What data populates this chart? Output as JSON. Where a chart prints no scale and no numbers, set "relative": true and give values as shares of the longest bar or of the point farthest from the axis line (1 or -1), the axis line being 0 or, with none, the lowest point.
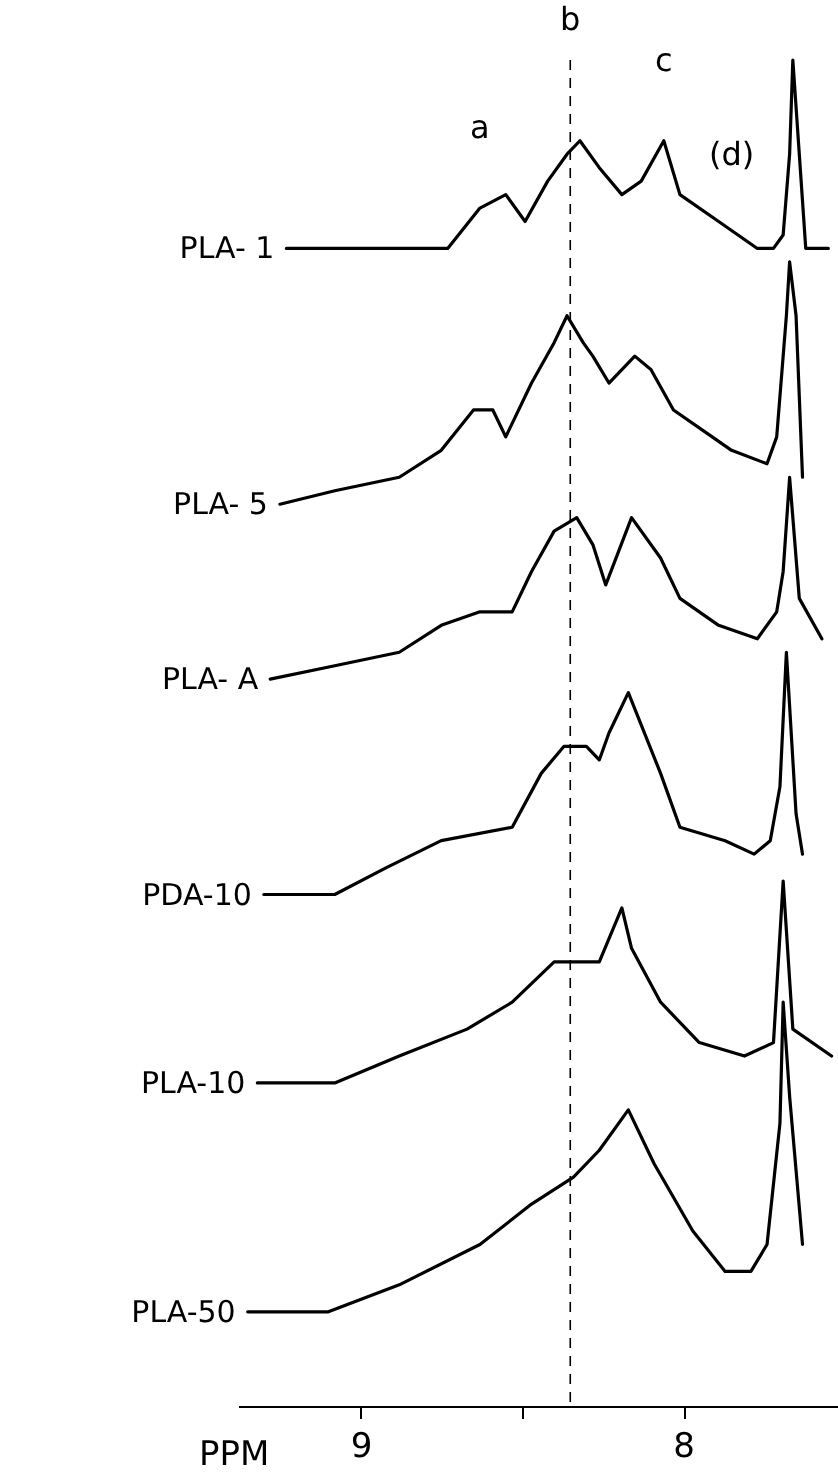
{
  "chart_data": {
    "type": "line",
    "relative": true,
    "xlabel": "PPM",
    "xlim": [
      9.38,
      7.52
    ],
    "xticks": [
      9,
      {
        "value": 8.5,
        "label": null
      },
      8
    ],
    "tick_labels": "x",
    "grid": false,
    "line_style": "solid",
    "series": [
      {
        "name": "PLA- 1",
        "color": "#000000",
        "x": [
          9.23,
          8.98,
          8.73,
          8.63,
          8.55,
          8.49,
          8.42,
          8.36,
          8.32,
          8.26,
          8.19,
          8.13,
          8.06,
          8.01,
          7.89,
          7.77,
          7.72,
          7.69,
          7.67,
          7.66,
          7.64,
          7.62,
          7.55
        ],
        "values": [
          0.86,
          0.86,
          0.86,
          0.89,
          0.9,
          0.88,
          0.91,
          0.93,
          0.94,
          0.92,
          0.9,
          0.91,
          0.94,
          0.9,
          0.88,
          0.86,
          0.86,
          0.87,
          0.93,
          1.0,
          0.93,
          0.86,
          0.86
        ]
      },
      {
        "name": "PLA- 5",
        "color": "#000000",
        "x": [
          9.25,
          9.08,
          8.88,
          8.75,
          8.65,
          8.59,
          8.55,
          8.47,
          8.4,
          8.36,
          8.31,
          8.28,
          8.23,
          8.15,
          8.1,
          8.03,
          7.91,
          7.85,
          7.74,
          7.71,
          7.68,
          7.67,
          7.65,
          7.63
        ],
        "values": [
          0.67,
          0.68,
          0.69,
          0.71,
          0.74,
          0.74,
          0.72,
          0.76,
          0.79,
          0.81,
          0.79,
          0.78,
          0.76,
          0.78,
          0.77,
          0.74,
          0.72,
          0.71,
          0.7,
          0.72,
          0.81,
          0.85,
          0.81,
          0.69
        ]
      },
      {
        "name": "PLA- A",
        "color": "#000000",
        "x": [
          9.28,
          9.08,
          8.88,
          8.75,
          8.63,
          8.53,
          8.47,
          8.4,
          8.33,
          8.28,
          8.24,
          8.16,
          8.07,
          8.01,
          7.89,
          7.77,
          7.71,
          7.69,
          7.67,
          7.64,
          7.57
        ],
        "values": [
          0.54,
          0.55,
          0.56,
          0.58,
          0.59,
          0.59,
          0.62,
          0.65,
          0.66,
          0.64,
          0.61,
          0.66,
          0.63,
          0.6,
          0.58,
          0.57,
          0.59,
          0.62,
          0.69,
          0.6,
          0.57
        ]
      },
      {
        "name": "PDA-10",
        "color": "#000000",
        "x": [
          9.3,
          9.08,
          8.92,
          8.75,
          8.53,
          8.44,
          8.37,
          8.3,
          8.26,
          8.23,
          8.17,
          8.07,
          8.01,
          7.87,
          7.78,
          7.73,
          7.7,
          7.68,
          7.65,
          7.63
        ],
        "values": [
          0.38,
          0.38,
          0.4,
          0.42,
          0.43,
          0.47,
          0.49,
          0.49,
          0.48,
          0.5,
          0.53,
          0.47,
          0.43,
          0.42,
          0.41,
          0.42,
          0.46,
          0.56,
          0.44,
          0.41
        ]
      },
      {
        "name": "PLA-10",
        "color": "#000000",
        "x": [
          9.32,
          9.08,
          8.88,
          8.67,
          8.53,
          8.4,
          8.34,
          8.26,
          8.19,
          8.16,
          8.07,
          7.95,
          7.81,
          7.72,
          7.69,
          7.66,
          7.54
        ],
        "values": [
          0.24,
          0.24,
          0.26,
          0.28,
          0.3,
          0.33,
          0.33,
          0.33,
          0.37,
          0.34,
          0.3,
          0.27,
          0.26,
          0.27,
          0.39,
          0.28,
          0.26
        ]
      },
      {
        "name": "PLA-50",
        "color": "#000000",
        "x": [
          9.35,
          9.1,
          8.88,
          8.63,
          8.47,
          8.34,
          8.26,
          8.17,
          8.09,
          7.97,
          7.87,
          7.79,
          7.74,
          7.7,
          7.69,
          7.67,
          7.63
        ],
        "values": [
          0.07,
          0.07,
          0.09,
          0.12,
          0.15,
          0.17,
          0.19,
          0.22,
          0.18,
          0.13,
          0.1,
          0.1,
          0.12,
          0.21,
          0.3,
          0.23,
          0.12
        ]
      }
    ],
    "ref_lines": [
      {
        "axis": "x",
        "value": 8.35,
        "color": "#000000",
        "line_style": "dashed"
      }
    ],
    "annotations": [
      {
        "text": "a",
        "x": 8.63,
        "y": 0.89
      },
      {
        "text": "b",
        "x": 8.35,
        "y": 0.97
      },
      {
        "text": "c",
        "x": 8.06,
        "y": 0.94
      },
      {
        "text": "(d)",
        "x": 7.85,
        "y": 0.87
      }
    ]
  }
}
